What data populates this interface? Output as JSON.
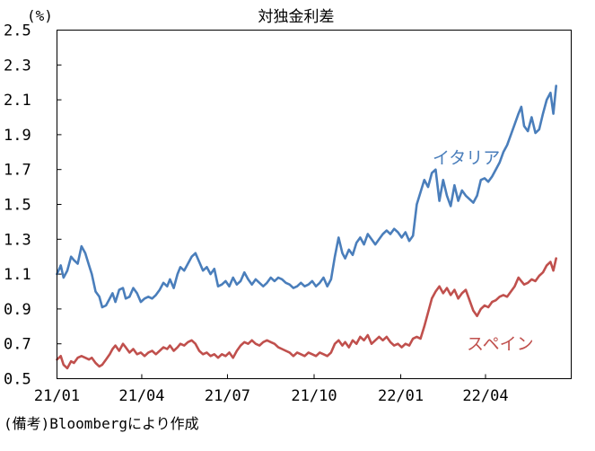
{
  "chart_data": {
    "type": "line",
    "title": "対独金利差",
    "unit": "(%)",
    "note": "(備考)Bloombergにより作成",
    "ylim": [
      0.5,
      2.5
    ],
    "yticks": [
      0.5,
      0.7,
      0.9,
      1.1,
      1.3,
      1.5,
      1.7,
      1.9,
      2.1,
      2.3,
      2.5
    ],
    "ytick_labels": [
      "0.5",
      "0.7",
      "0.9",
      "1.1",
      "1.3",
      "1.5",
      "1.7",
      "1.9",
      "2.1",
      "2.3",
      "2.5"
    ],
    "xlim": [
      "2021-01-01",
      "2022-07-01"
    ],
    "xticks": [
      "2021-01-01",
      "2021-04-01",
      "2021-07-01",
      "2021-10-01",
      "2022-01-01",
      "2022-04-01"
    ],
    "xtick_labels": [
      "21/01",
      "21/04",
      "21/07",
      "21/10",
      "22/01",
      "22/04"
    ],
    "grid": false,
    "series": [
      {
        "name": "イタリア",
        "color": "#4a7ebb",
        "points": [
          [
            "2021-01-01",
            1.1
          ],
          [
            "2021-01-05",
            1.15
          ],
          [
            "2021-01-08",
            1.08
          ],
          [
            "2021-01-12",
            1.12
          ],
          [
            "2021-01-16",
            1.2
          ],
          [
            "2021-01-19",
            1.18
          ],
          [
            "2021-01-23",
            1.16
          ],
          [
            "2021-01-27",
            1.26
          ],
          [
            "2021-01-31",
            1.22
          ],
          [
            "2021-02-04",
            1.15
          ],
          [
            "2021-02-07",
            1.1
          ],
          [
            "2021-02-11",
            1.0
          ],
          [
            "2021-02-15",
            0.97
          ],
          [
            "2021-02-18",
            0.91
          ],
          [
            "2021-02-22",
            0.92
          ],
          [
            "2021-02-26",
            0.96
          ],
          [
            "2021-03-01",
            0.99
          ],
          [
            "2021-03-04",
            0.94
          ],
          [
            "2021-03-08",
            1.01
          ],
          [
            "2021-03-12",
            1.02
          ],
          [
            "2021-03-15",
            0.96
          ],
          [
            "2021-03-19",
            0.97
          ],
          [
            "2021-03-23",
            1.02
          ],
          [
            "2021-03-27",
            0.99
          ],
          [
            "2021-03-31",
            0.94
          ],
          [
            "2021-04-04",
            0.96
          ],
          [
            "2021-04-08",
            0.97
          ],
          [
            "2021-04-12",
            0.96
          ],
          [
            "2021-04-16",
            0.98
          ],
          [
            "2021-04-20",
            1.01
          ],
          [
            "2021-04-24",
            1.05
          ],
          [
            "2021-04-28",
            1.03
          ],
          [
            "2021-05-01",
            1.07
          ],
          [
            "2021-05-05",
            1.02
          ],
          [
            "2021-05-09",
            1.1
          ],
          [
            "2021-05-12",
            1.14
          ],
          [
            "2021-05-16",
            1.12
          ],
          [
            "2021-05-20",
            1.16
          ],
          [
            "2021-05-24",
            1.2
          ],
          [
            "2021-05-28",
            1.22
          ],
          [
            "2021-06-01",
            1.17
          ],
          [
            "2021-06-05",
            1.12
          ],
          [
            "2021-06-09",
            1.14
          ],
          [
            "2021-06-13",
            1.1
          ],
          [
            "2021-06-17",
            1.13
          ],
          [
            "2021-06-21",
            1.03
          ],
          [
            "2021-06-25",
            1.04
          ],
          [
            "2021-06-29",
            1.06
          ],
          [
            "2021-07-03",
            1.03
          ],
          [
            "2021-07-07",
            1.08
          ],
          [
            "2021-07-11",
            1.04
          ],
          [
            "2021-07-15",
            1.06
          ],
          [
            "2021-07-19",
            1.11
          ],
          [
            "2021-07-23",
            1.07
          ],
          [
            "2021-07-27",
            1.04
          ],
          [
            "2021-07-31",
            1.07
          ],
          [
            "2021-08-04",
            1.05
          ],
          [
            "2021-08-08",
            1.03
          ],
          [
            "2021-08-12",
            1.05
          ],
          [
            "2021-08-16",
            1.08
          ],
          [
            "2021-08-20",
            1.06
          ],
          [
            "2021-08-24",
            1.08
          ],
          [
            "2021-08-28",
            1.07
          ],
          [
            "2021-09-01",
            1.05
          ],
          [
            "2021-09-05",
            1.04
          ],
          [
            "2021-09-09",
            1.02
          ],
          [
            "2021-09-13",
            1.03
          ],
          [
            "2021-09-17",
            1.05
          ],
          [
            "2021-09-21",
            1.03
          ],
          [
            "2021-09-25",
            1.04
          ],
          [
            "2021-09-29",
            1.06
          ],
          [
            "2021-10-03",
            1.03
          ],
          [
            "2021-10-07",
            1.05
          ],
          [
            "2021-10-11",
            1.08
          ],
          [
            "2021-10-15",
            1.03
          ],
          [
            "2021-10-19",
            1.07
          ],
          [
            "2021-10-23",
            1.2
          ],
          [
            "2021-10-27",
            1.31
          ],
          [
            "2021-10-31",
            1.22
          ],
          [
            "2021-11-03",
            1.19
          ],
          [
            "2021-11-07",
            1.24
          ],
          [
            "2021-11-11",
            1.21
          ],
          [
            "2021-11-15",
            1.28
          ],
          [
            "2021-11-19",
            1.31
          ],
          [
            "2021-11-23",
            1.27
          ],
          [
            "2021-11-27",
            1.33
          ],
          [
            "2021-12-01",
            1.3
          ],
          [
            "2021-12-05",
            1.27
          ],
          [
            "2021-12-09",
            1.3
          ],
          [
            "2021-12-13",
            1.33
          ],
          [
            "2021-12-17",
            1.35
          ],
          [
            "2021-12-21",
            1.33
          ],
          [
            "2021-12-25",
            1.36
          ],
          [
            "2021-12-29",
            1.34
          ],
          [
            "2022-01-02",
            1.31
          ],
          [
            "2022-01-06",
            1.34
          ],
          [
            "2022-01-10",
            1.29
          ],
          [
            "2022-01-14",
            1.32
          ],
          [
            "2022-01-18",
            1.5
          ],
          [
            "2022-01-22",
            1.57
          ],
          [
            "2022-01-26",
            1.64
          ],
          [
            "2022-01-30",
            1.6
          ],
          [
            "2022-02-03",
            1.68
          ],
          [
            "2022-02-07",
            1.7
          ],
          [
            "2022-02-11",
            1.52
          ],
          [
            "2022-02-15",
            1.64
          ],
          [
            "2022-02-19",
            1.55
          ],
          [
            "2022-02-23",
            1.49
          ],
          [
            "2022-02-27",
            1.61
          ],
          [
            "2022-03-03",
            1.52
          ],
          [
            "2022-03-07",
            1.58
          ],
          [
            "2022-03-11",
            1.55
          ],
          [
            "2022-03-15",
            1.53
          ],
          [
            "2022-03-19",
            1.51
          ],
          [
            "2022-03-23",
            1.55
          ],
          [
            "2022-03-27",
            1.64
          ],
          [
            "2022-03-31",
            1.65
          ],
          [
            "2022-04-04",
            1.63
          ],
          [
            "2022-04-08",
            1.66
          ],
          [
            "2022-04-12",
            1.7
          ],
          [
            "2022-04-16",
            1.74
          ],
          [
            "2022-04-20",
            1.8
          ],
          [
            "2022-04-24",
            1.84
          ],
          [
            "2022-04-28",
            1.9
          ],
          [
            "2022-05-02",
            1.96
          ],
          [
            "2022-05-06",
            2.02
          ],
          [
            "2022-05-09",
            2.06
          ],
          [
            "2022-05-12",
            1.95
          ],
          [
            "2022-05-16",
            1.92
          ],
          [
            "2022-05-20",
            2.0
          ],
          [
            "2022-05-24",
            1.91
          ],
          [
            "2022-05-28",
            1.93
          ],
          [
            "2022-06-01",
            2.02
          ],
          [
            "2022-06-05",
            2.1
          ],
          [
            "2022-06-09",
            2.14
          ],
          [
            "2022-06-12",
            2.02
          ],
          [
            "2022-06-15",
            2.18
          ]
        ]
      },
      {
        "name": "スペイン",
        "color": "#c0504d",
        "points": [
          [
            "2021-01-01",
            0.61
          ],
          [
            "2021-01-05",
            0.63
          ],
          [
            "2021-01-08",
            0.58
          ],
          [
            "2021-01-12",
            0.56
          ],
          [
            "2021-01-16",
            0.6
          ],
          [
            "2021-01-19",
            0.59
          ],
          [
            "2021-01-23",
            0.62
          ],
          [
            "2021-01-27",
            0.63
          ],
          [
            "2021-01-31",
            0.62
          ],
          [
            "2021-02-04",
            0.61
          ],
          [
            "2021-02-07",
            0.62
          ],
          [
            "2021-02-11",
            0.59
          ],
          [
            "2021-02-15",
            0.57
          ],
          [
            "2021-02-18",
            0.58
          ],
          [
            "2021-02-22",
            0.61
          ],
          [
            "2021-02-26",
            0.64
          ],
          [
            "2021-03-01",
            0.67
          ],
          [
            "2021-03-04",
            0.69
          ],
          [
            "2021-03-08",
            0.66
          ],
          [
            "2021-03-12",
            0.7
          ],
          [
            "2021-03-15",
            0.68
          ],
          [
            "2021-03-19",
            0.65
          ],
          [
            "2021-03-23",
            0.67
          ],
          [
            "2021-03-27",
            0.64
          ],
          [
            "2021-03-31",
            0.65
          ],
          [
            "2021-04-04",
            0.63
          ],
          [
            "2021-04-08",
            0.65
          ],
          [
            "2021-04-12",
            0.66
          ],
          [
            "2021-04-16",
            0.64
          ],
          [
            "2021-04-20",
            0.66
          ],
          [
            "2021-04-24",
            0.68
          ],
          [
            "2021-04-28",
            0.67
          ],
          [
            "2021-05-01",
            0.69
          ],
          [
            "2021-05-05",
            0.66
          ],
          [
            "2021-05-09",
            0.68
          ],
          [
            "2021-05-12",
            0.7
          ],
          [
            "2021-05-16",
            0.69
          ],
          [
            "2021-05-20",
            0.71
          ],
          [
            "2021-05-24",
            0.72
          ],
          [
            "2021-05-28",
            0.7
          ],
          [
            "2021-06-01",
            0.66
          ],
          [
            "2021-06-05",
            0.64
          ],
          [
            "2021-06-09",
            0.65
          ],
          [
            "2021-06-13",
            0.63
          ],
          [
            "2021-06-17",
            0.64
          ],
          [
            "2021-06-21",
            0.62
          ],
          [
            "2021-06-25",
            0.64
          ],
          [
            "2021-06-29",
            0.63
          ],
          [
            "2021-07-03",
            0.65
          ],
          [
            "2021-07-07",
            0.62
          ],
          [
            "2021-07-11",
            0.66
          ],
          [
            "2021-07-15",
            0.69
          ],
          [
            "2021-07-19",
            0.71
          ],
          [
            "2021-07-23",
            0.7
          ],
          [
            "2021-07-27",
            0.72
          ],
          [
            "2021-07-31",
            0.7
          ],
          [
            "2021-08-04",
            0.69
          ],
          [
            "2021-08-08",
            0.71
          ],
          [
            "2021-08-12",
            0.72
          ],
          [
            "2021-08-16",
            0.71
          ],
          [
            "2021-08-20",
            0.7
          ],
          [
            "2021-08-24",
            0.68
          ],
          [
            "2021-08-28",
            0.67
          ],
          [
            "2021-09-01",
            0.66
          ],
          [
            "2021-09-05",
            0.65
          ],
          [
            "2021-09-09",
            0.63
          ],
          [
            "2021-09-13",
            0.65
          ],
          [
            "2021-09-17",
            0.64
          ],
          [
            "2021-09-21",
            0.63
          ],
          [
            "2021-09-25",
            0.65
          ],
          [
            "2021-09-29",
            0.64
          ],
          [
            "2021-10-03",
            0.63
          ],
          [
            "2021-10-07",
            0.65
          ],
          [
            "2021-10-11",
            0.64
          ],
          [
            "2021-10-15",
            0.63
          ],
          [
            "2021-10-19",
            0.65
          ],
          [
            "2021-10-23",
            0.7
          ],
          [
            "2021-10-27",
            0.72
          ],
          [
            "2021-10-31",
            0.69
          ],
          [
            "2021-11-03",
            0.71
          ],
          [
            "2021-11-07",
            0.68
          ],
          [
            "2021-11-11",
            0.72
          ],
          [
            "2021-11-15",
            0.7
          ],
          [
            "2021-11-19",
            0.74
          ],
          [
            "2021-11-23",
            0.72
          ],
          [
            "2021-11-27",
            0.75
          ],
          [
            "2021-12-01",
            0.7
          ],
          [
            "2021-12-05",
            0.72
          ],
          [
            "2021-12-09",
            0.74
          ],
          [
            "2021-12-13",
            0.72
          ],
          [
            "2021-12-17",
            0.74
          ],
          [
            "2021-12-21",
            0.71
          ],
          [
            "2021-12-25",
            0.69
          ],
          [
            "2021-12-29",
            0.7
          ],
          [
            "2022-01-02",
            0.68
          ],
          [
            "2022-01-06",
            0.7
          ],
          [
            "2022-01-10",
            0.69
          ],
          [
            "2022-01-14",
            0.73
          ],
          [
            "2022-01-18",
            0.74
          ],
          [
            "2022-01-22",
            0.73
          ],
          [
            "2022-01-26",
            0.8
          ],
          [
            "2022-01-30",
            0.88
          ],
          [
            "2022-02-03",
            0.96
          ],
          [
            "2022-02-07",
            1.0
          ],
          [
            "2022-02-11",
            1.03
          ],
          [
            "2022-02-15",
            0.99
          ],
          [
            "2022-02-19",
            1.02
          ],
          [
            "2022-02-23",
            0.98
          ],
          [
            "2022-02-27",
            1.01
          ],
          [
            "2022-03-03",
            0.96
          ],
          [
            "2022-03-07",
            0.99
          ],
          [
            "2022-03-11",
            1.01
          ],
          [
            "2022-03-15",
            0.95
          ],
          [
            "2022-03-19",
            0.89
          ],
          [
            "2022-03-23",
            0.86
          ],
          [
            "2022-03-27",
            0.9
          ],
          [
            "2022-03-31",
            0.92
          ],
          [
            "2022-04-04",
            0.91
          ],
          [
            "2022-04-08",
            0.94
          ],
          [
            "2022-04-12",
            0.95
          ],
          [
            "2022-04-16",
            0.97
          ],
          [
            "2022-04-20",
            0.98
          ],
          [
            "2022-04-24",
            0.97
          ],
          [
            "2022-04-28",
            1.0
          ],
          [
            "2022-05-02",
            1.03
          ],
          [
            "2022-05-06",
            1.08
          ],
          [
            "2022-05-09",
            1.06
          ],
          [
            "2022-05-12",
            1.04
          ],
          [
            "2022-05-16",
            1.05
          ],
          [
            "2022-05-20",
            1.07
          ],
          [
            "2022-05-24",
            1.06
          ],
          [
            "2022-05-28",
            1.09
          ],
          [
            "2022-06-01",
            1.11
          ],
          [
            "2022-06-05",
            1.15
          ],
          [
            "2022-06-09",
            1.17
          ],
          [
            "2022-06-12",
            1.12
          ],
          [
            "2022-06-15",
            1.19
          ]
        ]
      }
    ]
  }
}
